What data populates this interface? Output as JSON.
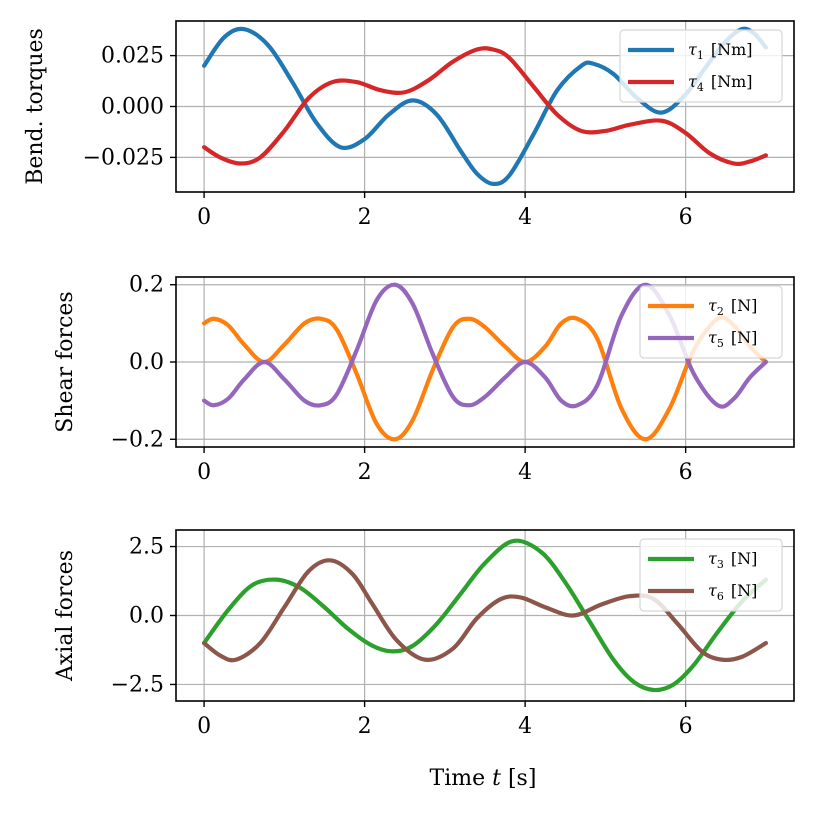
{
  "chart_data": [
    {
      "type": "line",
      "ylabel": "Bend. torques",
      "xlabel": "",
      "xlim": [
        -0.35,
        7.35
      ],
      "ylim": [
        -0.042,
        0.042
      ],
      "xticks": [
        0,
        2,
        4,
        6
      ],
      "xtick_labels": [
        "0",
        "2",
        "4",
        "6"
      ],
      "yticks": [
        0.025,
        0.0,
        -0.025
      ],
      "ytick_labels": [
        "0.025",
        "0.000",
        "−0.025"
      ],
      "grid": true,
      "legend_position": "top-right",
      "series": [
        {
          "name": "τ",
          "sub": "1",
          "unit": "[Nm]",
          "color": "#1f77b4",
          "x": [
            0,
            0.25,
            0.5,
            0.8,
            1.1,
            1.4,
            1.7,
            2.0,
            2.3,
            2.6,
            2.9,
            3.2,
            3.4,
            3.6,
            3.8,
            4.1,
            4.4,
            4.7,
            4.85,
            5.1,
            5.4,
            5.7,
            6.0,
            6.3,
            6.5,
            6.7,
            6.85,
            7.0
          ],
          "y": [
            0.02,
            0.034,
            0.038,
            0.03,
            0.012,
            -0.008,
            -0.02,
            -0.016,
            -0.004,
            0.003,
            -0.004,
            -0.022,
            -0.033,
            -0.038,
            -0.034,
            -0.014,
            0.008,
            0.02,
            0.021,
            0.016,
            0.004,
            -0.003,
            0.006,
            0.022,
            0.032,
            0.038,
            0.036,
            0.029
          ]
        },
        {
          "name": "τ",
          "sub": "4",
          "unit": "[Nm]",
          "color": "#d62728",
          "x": [
            0,
            0.2,
            0.45,
            0.7,
            1.0,
            1.3,
            1.6,
            1.9,
            2.2,
            2.5,
            2.8,
            3.1,
            3.4,
            3.6,
            3.8,
            4.1,
            4.4,
            4.7,
            5.0,
            5.3,
            5.7,
            6.0,
            6.3,
            6.6,
            6.8,
            7.0
          ],
          "y": [
            -0.02,
            -0.025,
            -0.028,
            -0.025,
            -0.012,
            0.004,
            0.012,
            0.012,
            0.008,
            0.007,
            0.013,
            0.022,
            0.028,
            0.028,
            0.024,
            0.01,
            -0.004,
            -0.012,
            -0.012,
            -0.009,
            -0.007,
            -0.013,
            -0.023,
            -0.028,
            -0.027,
            -0.024
          ]
        }
      ]
    },
    {
      "type": "line",
      "ylabel": "Shear forces",
      "xlabel": "",
      "xlim": [
        -0.35,
        7.35
      ],
      "ylim": [
        -0.22,
        0.22
      ],
      "xticks": [
        0,
        2,
        4,
        6
      ],
      "xtick_labels": [
        "0",
        "2",
        "4",
        "6"
      ],
      "yticks": [
        0.2,
        0.0,
        -0.2
      ],
      "ytick_labels": [
        "0.2",
        "0.0",
        "−0.2"
      ],
      "grid": true,
      "legend_position": "top-right",
      "series": [
        {
          "name": "τ",
          "sub": "2",
          "unit": "[N]",
          "color": "#ff7f0e",
          "x": [
            0,
            0.12,
            0.3,
            0.5,
            0.75,
            1.0,
            1.25,
            1.45,
            1.65,
            1.9,
            2.15,
            2.38,
            2.6,
            2.85,
            3.1,
            3.3,
            3.5,
            3.75,
            4.0,
            4.25,
            4.45,
            4.65,
            4.9,
            5.2,
            5.5,
            5.8,
            6.1,
            6.4,
            6.6,
            6.8,
            7.0
          ],
          "y": [
            0.1,
            0.112,
            0.095,
            0.045,
            0.0,
            0.045,
            0.1,
            0.112,
            0.085,
            -0.03,
            -0.16,
            -0.2,
            -0.15,
            -0.02,
            0.09,
            0.112,
            0.09,
            0.04,
            0.0,
            0.04,
            0.1,
            0.112,
            0.06,
            -0.12,
            -0.2,
            -0.12,
            0.03,
            0.112,
            0.095,
            0.04,
            0.0
          ]
        },
        {
          "name": "τ",
          "sub": "5",
          "unit": "[N]",
          "color": "#9467bd",
          "x": [
            0,
            0.12,
            0.3,
            0.5,
            0.75,
            1.0,
            1.25,
            1.45,
            1.65,
            1.9,
            2.15,
            2.38,
            2.6,
            2.85,
            3.1,
            3.3,
            3.5,
            3.75,
            4.0,
            4.25,
            4.45,
            4.65,
            4.9,
            5.2,
            5.5,
            5.8,
            6.1,
            6.4,
            6.6,
            6.8,
            7.0
          ],
          "y": [
            -0.1,
            -0.112,
            -0.095,
            -0.045,
            0.0,
            -0.045,
            -0.1,
            -0.112,
            -0.085,
            0.03,
            0.16,
            0.2,
            0.15,
            0.02,
            -0.09,
            -0.112,
            -0.09,
            -0.04,
            0.0,
            -0.04,
            -0.1,
            -0.112,
            -0.06,
            0.12,
            0.2,
            0.12,
            -0.03,
            -0.112,
            -0.095,
            -0.04,
            0.0
          ]
        }
      ]
    },
    {
      "type": "line",
      "ylabel": "Axial forces",
      "xlabel": "Time t [s]",
      "xlabel_main": "Time ",
      "xlabel_var": "t",
      "xlabel_unit": " [s]",
      "xlim": [
        -0.35,
        7.35
      ],
      "ylim": [
        -3.1,
        3.1
      ],
      "xticks": [
        0,
        2,
        4,
        6
      ],
      "xtick_labels": [
        "0",
        "2",
        "4",
        "6"
      ],
      "yticks": [
        2.5,
        0.0,
        -2.5
      ],
      "ytick_labels": [
        "2.5",
        "0.0",
        "−2.5"
      ],
      "grid": true,
      "legend_position": "top-right",
      "series": [
        {
          "name": "τ",
          "sub": "3",
          "unit": "[N]",
          "color": "#2ca02c",
          "x": [
            0,
            0.3,
            0.6,
            0.9,
            1.2,
            1.5,
            1.8,
            2.1,
            2.35,
            2.6,
            2.9,
            3.2,
            3.5,
            3.85,
            4.2,
            4.5,
            4.8,
            5.1,
            5.35,
            5.6,
            5.85,
            6.1,
            6.4,
            6.7,
            7.0
          ],
          "y": [
            -1.0,
            0.2,
            1.1,
            1.3,
            1.0,
            0.3,
            -0.5,
            -1.1,
            -1.3,
            -1.1,
            -0.3,
            0.8,
            1.9,
            2.7,
            2.3,
            1.2,
            -0.2,
            -1.6,
            -2.4,
            -2.7,
            -2.5,
            -1.8,
            -0.6,
            0.5,
            1.3
          ]
        },
        {
          "name": "τ",
          "sub": "6",
          "unit": "[N]",
          "color": "#8c564b",
          "x": [
            0,
            0.2,
            0.4,
            0.7,
            1.0,
            1.3,
            1.57,
            1.85,
            2.1,
            2.4,
            2.75,
            3.1,
            3.4,
            3.7,
            3.95,
            4.25,
            4.6,
            4.95,
            5.3,
            5.6,
            5.9,
            6.2,
            6.45,
            6.7,
            7.0
          ],
          "y": [
            -1.0,
            -1.45,
            -1.6,
            -1.0,
            0.3,
            1.6,
            2.0,
            1.5,
            0.4,
            -0.9,
            -1.6,
            -1.2,
            -0.1,
            0.6,
            0.65,
            0.3,
            0.0,
            0.4,
            0.7,
            0.6,
            -0.3,
            -1.3,
            -1.6,
            -1.5,
            -1.0
          ]
        }
      ]
    }
  ]
}
